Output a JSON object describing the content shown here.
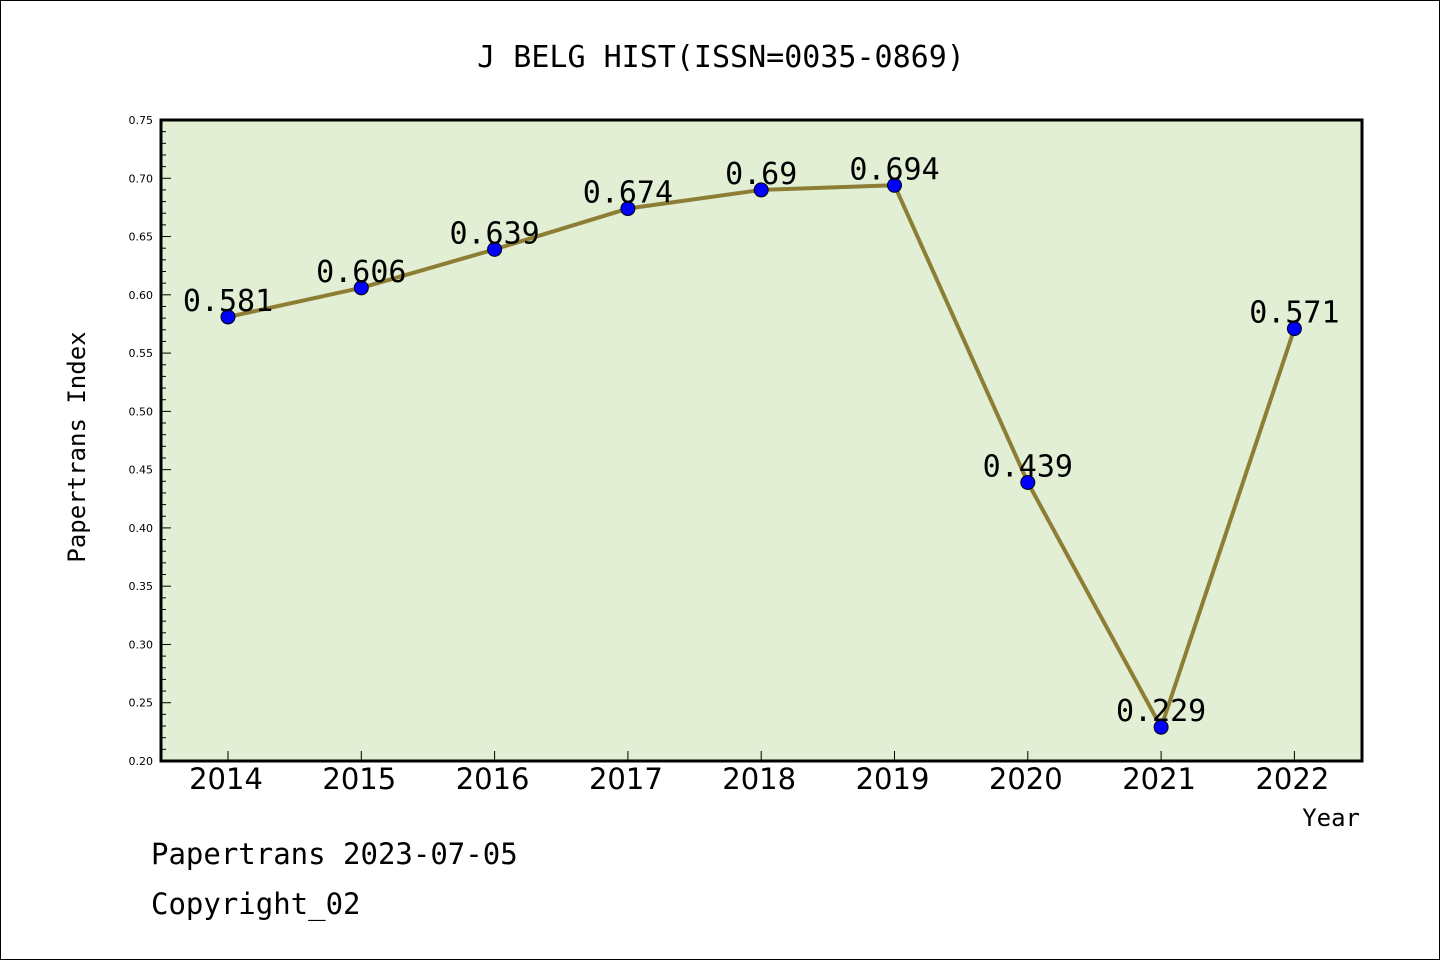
{
  "chart_data": {
    "type": "line",
    "title": "J BELG HIST(ISSN=0035-0869)",
    "xlabel": "Year",
    "ylabel": "Papertrans Index",
    "x": [
      "2014",
      "2015",
      "2016",
      "2017",
      "2018",
      "2019",
      "2020",
      "2021",
      "2022"
    ],
    "series": [
      {
        "values": [
          0.581,
          0.606,
          0.639,
          0.674,
          0.69,
          0.694,
          0.439,
          0.229,
          0.571
        ],
        "data_labels": [
          "0.581",
          "0.606",
          "0.639",
          "0.674",
          "0.69",
          "0.694",
          "0.439",
          "0.229",
          "0.571"
        ]
      }
    ],
    "ylim": [
      0.2,
      0.75
    ],
    "yticks": [
      "0.20",
      "0.25",
      "0.30",
      "0.35",
      "0.40",
      "0.45",
      "0.50",
      "0.55",
      "0.60",
      "0.65",
      "0.70",
      "0.75"
    ],
    "grid": false,
    "legend": "none",
    "colors": {
      "plot_background": "#e2efd5",
      "line": "#8e7e35",
      "marker": "#0000ff"
    }
  },
  "footer": {
    "line1": "Papertrans 2023-07-05",
    "line2": "Copyright_02"
  }
}
